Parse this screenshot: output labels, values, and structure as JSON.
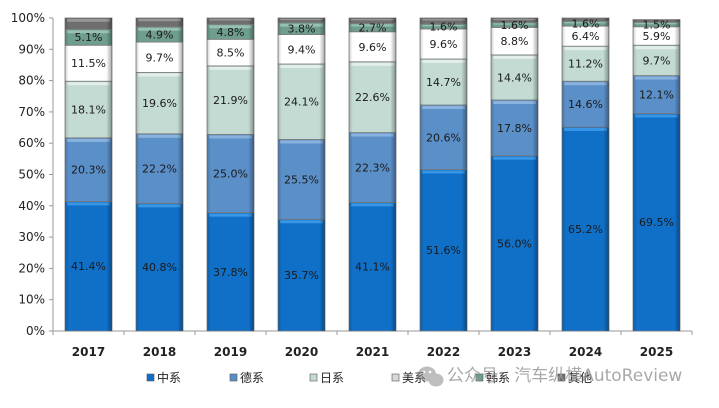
{
  "chart_data": {
    "type": "bar",
    "stacked": true,
    "percent": true,
    "title": "",
    "xlabel": "",
    "ylabel": "",
    "ylim": [
      0,
      100
    ],
    "yticks": [
      "0%",
      "10%",
      "20%",
      "30%",
      "40%",
      "50%",
      "60%",
      "70%",
      "80%",
      "90%",
      "100%"
    ],
    "categories": [
      "2017",
      "2018",
      "2019",
      "2020",
      "2021",
      "2022",
      "2023",
      "2024",
      "2025"
    ],
    "series": [
      {
        "name": "中系",
        "color": "#1070c8",
        "values": [
          41.4,
          40.8,
          37.8,
          35.7,
          41.1,
          51.6,
          56.0,
          65.2,
          69.5
        ],
        "labels": [
          "41.4%",
          "40.8%",
          "37.8%",
          "35.7%",
          "41.1%",
          "51.6%",
          "56.0%",
          "65.2%",
          "69.5%"
        ]
      },
      {
        "name": "德系",
        "color": "#5b8fc8",
        "values": [
          20.3,
          22.2,
          25.0,
          25.5,
          22.3,
          20.6,
          17.8,
          14.6,
          12.1
        ],
        "labels": [
          "20.3%",
          "22.2%",
          "25.0%",
          "25.5%",
          "22.3%",
          "20.6%",
          "17.8%",
          "14.6%",
          "12.1%"
        ]
      },
      {
        "name": "日系",
        "color": "#c3dbd3",
        "values": [
          18.1,
          19.6,
          21.9,
          24.1,
          22.6,
          14.7,
          14.4,
          11.2,
          9.7
        ],
        "labels": [
          "18.1%",
          "19.6%",
          "21.9%",
          "24.1%",
          "22.6%",
          "14.7%",
          "14.4%",
          "11.2%",
          "9.7%"
        ]
      },
      {
        "name": "美系",
        "color": "#ffffff",
        "values": [
          11.5,
          9.7,
          8.5,
          9.4,
          9.6,
          9.6,
          8.8,
          6.4,
          5.9
        ],
        "labels": [
          "11.5%",
          "9.7%",
          "8.5%",
          "9.4%",
          "9.6%",
          "9.6%",
          "8.8%",
          "6.4%",
          "5.9%"
        ]
      },
      {
        "name": "韩系",
        "color": "#6f9e8e",
        "values": [
          5.1,
          4.9,
          4.8,
          3.8,
          2.7,
          1.6,
          1.6,
          1.6,
          1.5
        ],
        "labels": [
          "5.1%",
          "4.9%",
          "4.8%",
          "3.8%",
          "2.7%",
          "1.6%",
          "1.6%",
          "1.6%",
          "1.5%"
        ]
      },
      {
        "name": "其他",
        "color": "#6e6e6e",
        "values": [
          3.6,
          2.8,
          2.0,
          1.5,
          1.7,
          1.9,
          1.4,
          1.0,
          0.8
        ],
        "labels": [
          "",
          "",
          "",
          "",
          "",
          "",
          "",
          "",
          ""
        ]
      }
    ],
    "grid": false,
    "legend": "bottom"
  },
  "watermark": {
    "text": "公众号 · 汽车纵横AutoReview",
    "icon": "wechat-icon"
  }
}
